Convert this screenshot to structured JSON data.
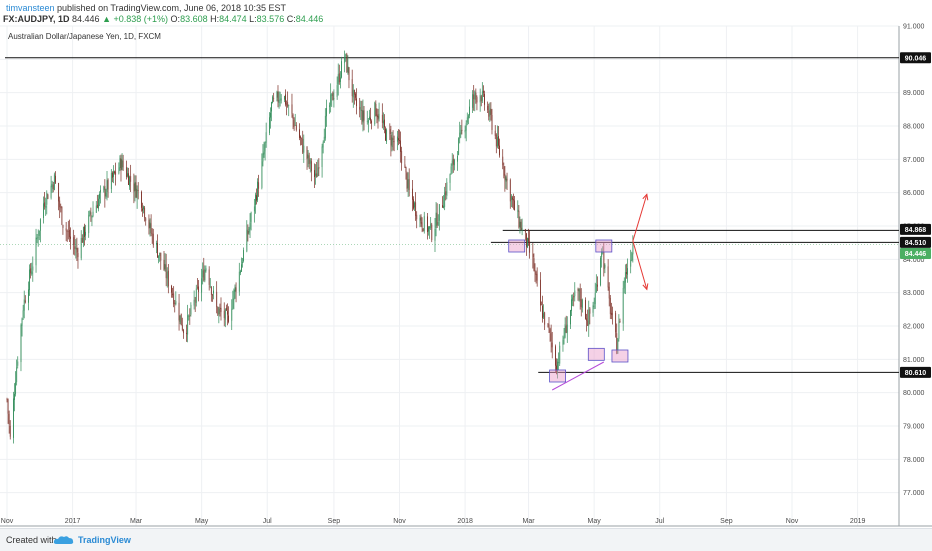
{
  "header": {
    "author": "timvansteen",
    "published_text": " published on TradingView.com, June 06, 2018 10:35 EST",
    "symbol": "FX:AUDJPY, 1D",
    "last": "84.446",
    "change": "▲ +0.838 (+1%)",
    "open_label": "O:",
    "open": "83.608",
    "high_label": "H:",
    "high": "84.474",
    "low_label": "L:",
    "low": "83.576",
    "close_label": "C:",
    "close": "84.446"
  },
  "footer": {
    "created_label": "Created with",
    "brand": "TradingView"
  },
  "chart_data": {
    "type": "candlestick",
    "subtitle": "Australian Dollar/Japanese Yen, 1D, FXCM",
    "ylim": [
      76.0,
      91.0
    ],
    "y_ticks": [
      "77.000",
      "78.000",
      "79.000",
      "80.000",
      "81.000",
      "82.000",
      "83.000",
      "84.000",
      "85.000",
      "86.000",
      "87.000",
      "88.000",
      "89.000",
      "90.000",
      "91.000"
    ],
    "x_ticks": [
      "Nov",
      "2017",
      "Mar",
      "May",
      "Jul",
      "Sep",
      "Nov",
      "2018",
      "Mar",
      "May",
      "Jul",
      "Sep",
      "Nov",
      "2019"
    ],
    "x_tick_dates": [
      "2016-11-01",
      "2017-01-01",
      "2017-03-01",
      "2017-05-01",
      "2017-07-01",
      "2017-09-01",
      "2017-11-01",
      "2018-01-01",
      "2018-03-01",
      "2018-05-01",
      "2018-07-01",
      "2018-09-01",
      "2018-11-01",
      "2019-01-01"
    ],
    "x_range": [
      "2016-11-01",
      "2019-02-15"
    ],
    "grid": true,
    "up_color": "#2e8b57",
    "down_color": "#7a2b22",
    "path_dates": [
      "2016-11-01",
      "2016-11-04",
      "2016-11-09",
      "2016-11-16",
      "2016-11-25",
      "2016-12-05",
      "2016-12-15",
      "2016-12-23",
      "2017-01-05",
      "2017-01-15",
      "2017-01-25",
      "2017-02-05",
      "2017-02-15",
      "2017-02-25",
      "2017-03-05",
      "2017-03-15",
      "2017-03-25",
      "2017-04-05",
      "2017-04-15",
      "2017-04-25",
      "2017-05-05",
      "2017-05-15",
      "2017-05-25",
      "2017-06-05",
      "2017-06-15",
      "2017-06-25",
      "2017-07-05",
      "2017-07-15",
      "2017-07-25",
      "2017-08-05",
      "2017-08-15",
      "2017-08-25",
      "2017-09-05",
      "2017-09-11",
      "2017-09-20",
      "2017-10-01",
      "2017-10-10",
      "2017-10-20",
      "2017-11-01",
      "2017-11-10",
      "2017-11-20",
      "2017-12-01",
      "2017-12-10",
      "2017-12-20",
      "2018-01-01",
      "2018-01-08",
      "2018-01-15",
      "2018-01-25",
      "2018-02-05",
      "2018-02-15",
      "2018-02-25",
      "2018-03-05",
      "2018-03-12",
      "2018-03-20",
      "2018-03-27",
      "2018-04-05",
      "2018-04-15",
      "2018-04-25",
      "2018-05-01",
      "2018-05-08",
      "2018-05-15",
      "2018-05-22",
      "2018-05-29",
      "2018-06-06"
    ],
    "path_values": [
      79.8,
      78.6,
      80.5,
      82.6,
      83.9,
      85.7,
      86.4,
      85.1,
      84.2,
      85.1,
      85.8,
      86.3,
      86.9,
      86.3,
      85.9,
      84.8,
      83.9,
      82.9,
      81.8,
      82.8,
      83.8,
      82.5,
      82.2,
      83.6,
      85.1,
      86.6,
      88.6,
      89.0,
      88.2,
      87.2,
      86.4,
      88.3,
      89.4,
      90.1,
      88.7,
      88.1,
      88.5,
      87.7,
      87.4,
      86.0,
      85.2,
      84.8,
      85.6,
      86.8,
      88.1,
      88.8,
      89.0,
      88.2,
      86.8,
      85.6,
      84.7,
      83.9,
      82.6,
      81.8,
      80.8,
      82.0,
      83.1,
      82.2,
      82.7,
      84.4,
      82.7,
      81.4,
      83.4,
      84.446
    ],
    "price_tags": [
      {
        "value": 90.046,
        "label": "90.046",
        "style": "dark"
      },
      {
        "value": 84.868,
        "label": "84.868",
        "style": "dark"
      },
      {
        "value": 84.51,
        "label": "84.510",
        "style": "dark"
      },
      {
        "value": 84.446,
        "label": "84.446",
        "style": "last"
      },
      {
        "value": 80.61,
        "label": "80.610",
        "style": "dark"
      }
    ],
    "annotations": {
      "resistance_levels": [
        90.046,
        84.868,
        84.51
      ],
      "support_level": 80.61,
      "scenario_arrows": [
        "up",
        "down"
      ]
    }
  }
}
